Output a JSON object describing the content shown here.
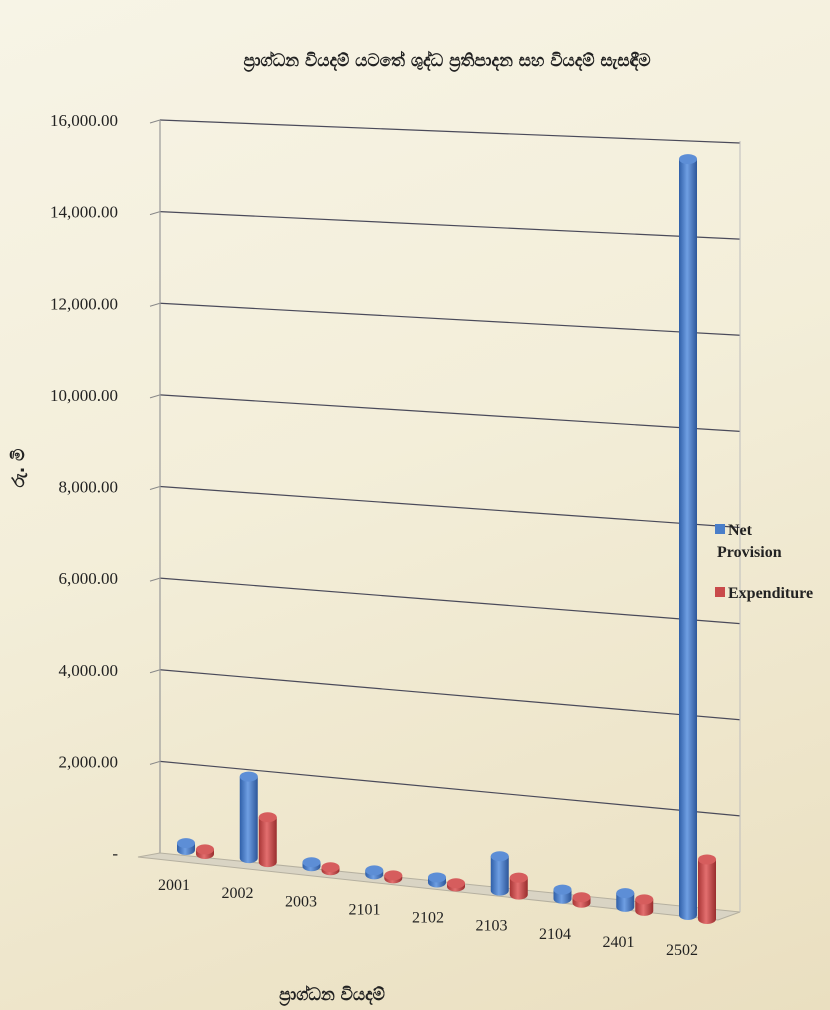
{
  "chart_data": {
    "type": "bar",
    "title": "ප්‍රාග්ධන වියදම් යටතේ ශුද්ධ ප්‍රතිපාදන සහ වියදම් සැසඳීම",
    "xlabel": "ප්‍රාග්ධන වියදම්",
    "ylabel": "රු. මි",
    "ylim": [
      0,
      16000
    ],
    "y_ticks": [
      "-",
      "2,000.00",
      "4,000.00",
      "6,000.00",
      "8,000.00",
      "10,000.00",
      "12,000.00",
      "14,000.00",
      "16,000.00"
    ],
    "categories": [
      "2001",
      "2002",
      "2003",
      "2101",
      "2102",
      "2103",
      "2104",
      "2401",
      "2502"
    ],
    "series": [
      {
        "name": "Net Provision",
        "color": "#4a7ec9",
        "values": [
          150,
          1780,
          60,
          50,
          110,
          750,
          200,
          300,
          16500
        ]
      },
      {
        "name": "Expenditure",
        "color": "#c94a4a",
        "values": [
          100,
          980,
          40,
          40,
          70,
          370,
          120,
          250,
          1300
        ]
      }
    ],
    "legend_position": "right",
    "grid": true
  }
}
